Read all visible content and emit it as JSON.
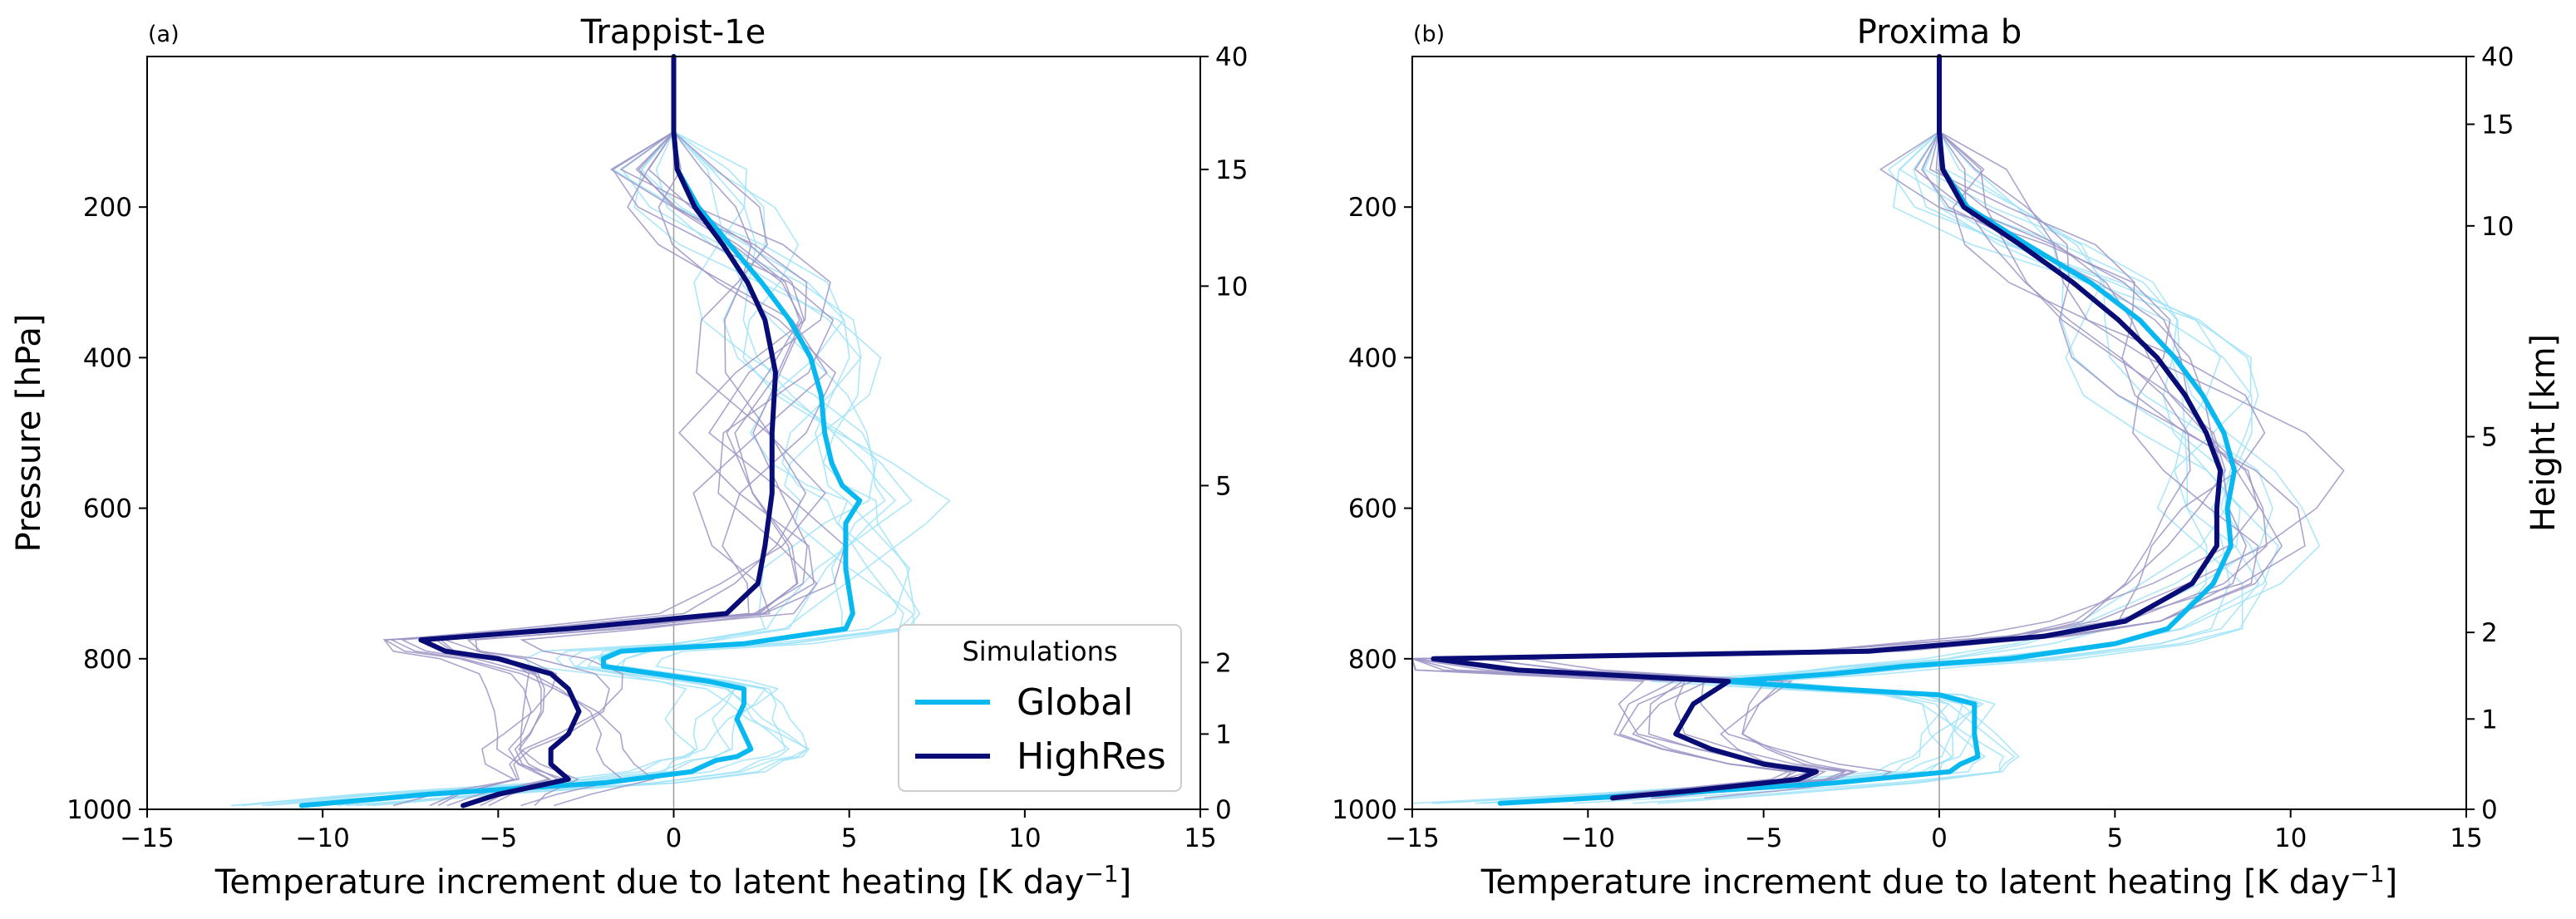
{
  "colors": {
    "global": "#0ab8f0",
    "highres": "#080c74",
    "global_member": "#9fe3f8",
    "highres_member": "#9c95c6",
    "zero_line": "#9e9e9e"
  },
  "legend": {
    "title": "Simulations",
    "entries": [
      {
        "name": "Global",
        "color": "#0ab8f0"
      },
      {
        "name": "HighRes",
        "color": "#080c74"
      }
    ],
    "location": "lower-right of panel (a)"
  },
  "chart_data": [
    {
      "type": "line",
      "panel": "(a)",
      "title": "Trappist-1e",
      "xlabel": "Temperature increment due to latent heating [K day⁻¹]",
      "ylabel": "Pressure [hPa]",
      "y2label": "",
      "xlim": [
        -15,
        15
      ],
      "ylim": [
        1000,
        0
      ],
      "xticks": [
        -15,
        -10,
        -5,
        0,
        5,
        10,
        15
      ],
      "xtick_labels": [
        "−15",
        "−10",
        "−5",
        "0",
        "5",
        "10",
        "15"
      ],
      "yticks": [
        200,
        400,
        600,
        800,
        1000
      ],
      "y2ticks": [
        {
          "label": "40",
          "p": 0
        },
        {
          "label": "15",
          "p": 150
        },
        {
          "label": "10",
          "p": 305
        },
        {
          "label": "5",
          "p": 570
        },
        {
          "label": "2",
          "p": 805
        },
        {
          "label": "1",
          "p": 900
        },
        {
          "label": "0",
          "p": 1000
        }
      ],
      "grid": false,
      "series": [
        {
          "name": "Global",
          "points": [
            [
              0,
              0
            ],
            [
              0,
              100
            ],
            [
              0.1,
              150
            ],
            [
              0.7,
              200
            ],
            [
              1.6,
              250
            ],
            [
              2.5,
              300
            ],
            [
              3.3,
              350
            ],
            [
              3.9,
              400
            ],
            [
              4.2,
              450
            ],
            [
              4.3,
              500
            ],
            [
              4.5,
              540
            ],
            [
              4.8,
              570
            ],
            [
              5.3,
              590
            ],
            [
              4.9,
              620
            ],
            [
              4.9,
              680
            ],
            [
              5.1,
              740
            ],
            [
              4.9,
              760
            ],
            [
              2,
              780
            ],
            [
              -1.5,
              790
            ],
            [
              -2,
              800
            ],
            [
              -2,
              810
            ],
            [
              1,
              830
            ],
            [
              2,
              840
            ],
            [
              2,
              860
            ],
            [
              1.8,
              880
            ],
            [
              2,
              900
            ],
            [
              2.2,
              920
            ],
            [
              1.8,
              930
            ],
            [
              1.2,
              935
            ],
            [
              0.5,
              950
            ],
            [
              -2,
              965
            ],
            [
              -7,
              980
            ],
            [
              -10.6,
              995
            ]
          ]
        },
        {
          "name": "HighRes",
          "points": [
            [
              0,
              0
            ],
            [
              0,
              100
            ],
            [
              0.1,
              150
            ],
            [
              0.6,
              200
            ],
            [
              1.4,
              250
            ],
            [
              2.1,
              300
            ],
            [
              2.6,
              350
            ],
            [
              2.9,
              420
            ],
            [
              2.8,
              500
            ],
            [
              2.8,
              580
            ],
            [
              2.6,
              650
            ],
            [
              2.4,
              700
            ],
            [
              1.5,
              740
            ],
            [
              -3,
              760
            ],
            [
              -7.2,
              775
            ],
            [
              -6.5,
              790
            ],
            [
              -5,
              800
            ],
            [
              -3.5,
              820
            ],
            [
              -3,
              840
            ],
            [
              -2.7,
              870
            ],
            [
              -3,
              900
            ],
            [
              -3.5,
              920
            ],
            [
              -3.5,
              940
            ],
            [
              -3,
              960
            ],
            [
              -5,
              980
            ],
            [
              -6,
              995
            ]
          ]
        }
      ],
      "member_count_per_series": 10
    },
    {
      "type": "line",
      "panel": "(b)",
      "title": "Proxima b",
      "xlabel": "Temperature increment due to latent heating [K day⁻¹]",
      "ylabel": "",
      "y2label": "Height [km]",
      "xlim": [
        -15,
        15
      ],
      "ylim": [
        1000,
        0
      ],
      "xticks": [
        -15,
        -10,
        -5,
        0,
        5,
        10,
        15
      ],
      "xtick_labels": [
        "−15",
        "−10",
        "−5",
        "0",
        "5",
        "10",
        "15"
      ],
      "yticks": [
        200,
        400,
        600,
        800,
        1000
      ],
      "y2ticks": [
        {
          "label": "40",
          "p": 0
        },
        {
          "label": "15",
          "p": 90
        },
        {
          "label": "10",
          "p": 225
        },
        {
          "label": "5",
          "p": 505
        },
        {
          "label": "2",
          "p": 765
        },
        {
          "label": "1",
          "p": 880
        },
        {
          "label": "0",
          "p": 1000
        }
      ],
      "grid": false,
      "series": [
        {
          "name": "Global",
          "points": [
            [
              0,
              0
            ],
            [
              0,
              100
            ],
            [
              0.1,
              150
            ],
            [
              0.8,
              200
            ],
            [
              2.5,
              250
            ],
            [
              4.3,
              300
            ],
            [
              5.7,
              350
            ],
            [
              6.7,
              400
            ],
            [
              7.5,
              450
            ],
            [
              8.1,
              500
            ],
            [
              8.4,
              550
            ],
            [
              8.2,
              600
            ],
            [
              8.3,
              650
            ],
            [
              7.8,
              700
            ],
            [
              6.5,
              760
            ],
            [
              5,
              780
            ],
            [
              2,
              800
            ],
            [
              -1,
              810
            ],
            [
              -3,
              820
            ],
            [
              -6,
              830
            ],
            [
              -3,
              840
            ],
            [
              0,
              848
            ],
            [
              1,
              860
            ],
            [
              1,
              900
            ],
            [
              1.1,
              930
            ],
            [
              0.6,
              940
            ],
            [
              0.3,
              950
            ],
            [
              -3,
              965
            ],
            [
              -8,
              980
            ],
            [
              -12.5,
              992
            ]
          ]
        },
        {
          "name": "HighRes",
          "points": [
            [
              0,
              0
            ],
            [
              0,
              100
            ],
            [
              0.1,
              150
            ],
            [
              0.7,
              200
            ],
            [
              2.3,
              250
            ],
            [
              3.8,
              300
            ],
            [
              5.1,
              350
            ],
            [
              6.2,
              400
            ],
            [
              7,
              450
            ],
            [
              7.6,
              500
            ],
            [
              8,
              550
            ],
            [
              7.9,
              600
            ],
            [
              7.9,
              650
            ],
            [
              7.2,
              700
            ],
            [
              5.3,
              750
            ],
            [
              3,
              770
            ],
            [
              -2,
              790
            ],
            [
              -14.4,
              800
            ],
            [
              -12,
              815
            ],
            [
              -6,
              830
            ],
            [
              -7,
              860
            ],
            [
              -7.5,
              900
            ],
            [
              -6.5,
              920
            ],
            [
              -5,
              940
            ],
            [
              -3.5,
              950
            ],
            [
              -4,
              960
            ],
            [
              -7,
              975
            ],
            [
              -9.3,
              985
            ]
          ]
        }
      ],
      "member_count_per_series": 10
    }
  ]
}
